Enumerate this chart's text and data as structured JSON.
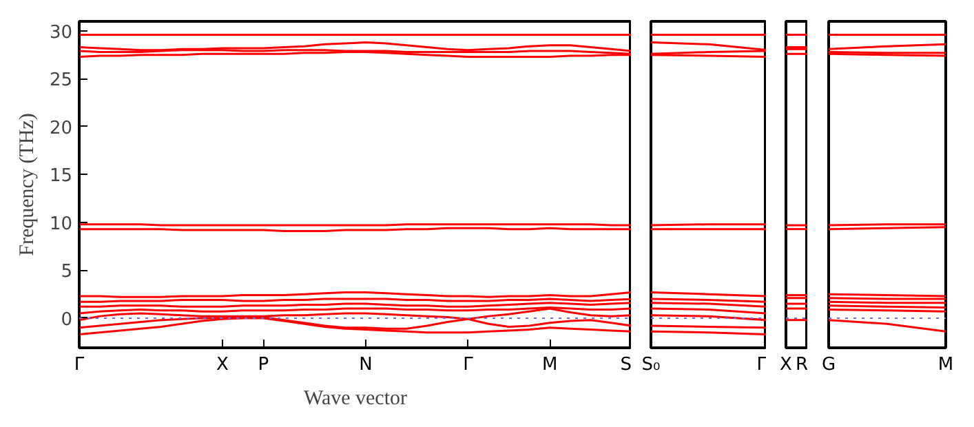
{
  "chart_data": [
    {
      "type": "line",
      "ylabel": "Frequency (THz)",
      "xlabel": "Wave vector",
      "ylim": [
        -3.1,
        31
      ],
      "categories": [
        "Γ",
        null,
        null,
        null,
        null,
        null,
        null,
        "X",
        null,
        "P",
        null,
        null,
        null,
        null,
        "N",
        null,
        null,
        null,
        null,
        "Γ",
        null,
        null,
        null,
        "M",
        null,
        null,
        null,
        "S"
      ],
      "yticks": [
        0,
        5,
        10,
        15,
        20,
        25,
        30
      ],
      "grid": false,
      "ref_lines": [
        {
          "axis": "y",
          "value": 0,
          "color": "#6a6ae8",
          "line_style": "dotted"
        }
      ],
      "series": [
        {
          "color": "#ff0000",
          "values": [
            -1.7,
            -1.5,
            -1.3,
            -1.1,
            -0.9,
            -0.6,
            -0.3,
            -0.1,
            0,
            0,
            -0.3,
            -0.6,
            -0.9,
            -1.1,
            -1.2,
            -1.3,
            -1.4,
            -1.5,
            -1.5,
            -1.5,
            -1.4,
            -1.3,
            -1.2,
            -1.0,
            -1.1,
            -1.2,
            -1.3,
            -1.4
          ]
        },
        {
          "color": "#ff0000",
          "values": [
            -1.0,
            -0.8,
            -0.6,
            -0.4,
            -0.2,
            -0.1,
            0,
            0,
            0.1,
            0.1,
            -0.2,
            -0.5,
            -0.8,
            -1.0,
            -1.0,
            -1.1,
            -1.1,
            -0.8,
            -0.4,
            -0.1,
            -0.6,
            -0.9,
            -0.8,
            -0.5,
            -0.3,
            -0.2,
            -0.5,
            -0.8
          ]
        },
        {
          "color": "#ff0000",
          "values": [
            -0.2,
            0.2,
            0.4,
            0.5,
            0.4,
            0.3,
            0.2,
            0.2,
            0.2,
            0.2,
            0.3,
            0.3,
            0.4,
            0.5,
            0.5,
            0.4,
            0.3,
            0.2,
            0.1,
            -0.1,
            0.2,
            0.4,
            0.7,
            1.0,
            0.6,
            0.3,
            0.2,
            0.3
          ]
        },
        {
          "color": "#ff0000",
          "values": [
            0.5,
            0.7,
            0.8,
            0.9,
            0.8,
            0.8,
            0.7,
            0.7,
            0.8,
            0.8,
            0.8,
            0.9,
            0.9,
            1.0,
            1.0,
            1.0,
            0.9,
            0.9,
            0.8,
            0.8,
            0.9,
            0.9,
            1.0,
            1.1,
            1.0,
            0.9,
            0.9,
            1.0
          ]
        },
        {
          "color": "#ff0000",
          "values": [
            1.2,
            1.2,
            1.3,
            1.3,
            1.3,
            1.2,
            1.2,
            1.2,
            1.3,
            1.3,
            1.3,
            1.4,
            1.4,
            1.5,
            1.5,
            1.4,
            1.3,
            1.3,
            1.2,
            1.2,
            1.3,
            1.4,
            1.5,
            1.6,
            1.5,
            1.4,
            1.5,
            1.6
          ]
        },
        {
          "color": "#ff0000",
          "values": [
            1.7,
            1.7,
            1.8,
            1.8,
            1.8,
            1.9,
            1.9,
            1.9,
            1.8,
            1.8,
            1.9,
            1.9,
            2.0,
            2.0,
            2.0,
            2.0,
            1.9,
            1.9,
            1.8,
            1.8,
            1.8,
            1.9,
            1.9,
            2.0,
            1.9,
            1.8,
            1.9,
            2.0
          ]
        },
        {
          "color": "#ff0000",
          "values": [
            2.3,
            2.3,
            2.2,
            2.2,
            2.2,
            2.3,
            2.3,
            2.3,
            2.4,
            2.4,
            2.4,
            2.5,
            2.6,
            2.7,
            2.7,
            2.6,
            2.5,
            2.4,
            2.3,
            2.3,
            2.2,
            2.3,
            2.3,
            2.4,
            2.3,
            2.3,
            2.5,
            2.7
          ]
        },
        {
          "color": "#ff0000",
          "values": [
            9.3,
            9.3,
            9.3,
            9.3,
            9.3,
            9.2,
            9.2,
            9.2,
            9.2,
            9.2,
            9.1,
            9.1,
            9.1,
            9.2,
            9.2,
            9.2,
            9.3,
            9.3,
            9.4,
            9.4,
            9.4,
            9.3,
            9.3,
            9.4,
            9.3,
            9.3,
            9.3,
            9.3
          ]
        },
        {
          "color": "#ff0000",
          "values": [
            9.8,
            9.8,
            9.8,
            9.8,
            9.7,
            9.7,
            9.7,
            9.7,
            9.7,
            9.7,
            9.7,
            9.7,
            9.7,
            9.7,
            9.7,
            9.7,
            9.8,
            9.8,
            9.8,
            9.8,
            9.8,
            9.8,
            9.8,
            9.8,
            9.8,
            9.8,
            9.7,
            9.7
          ]
        },
        {
          "color": "#ff0000",
          "values": [
            27.3,
            27.4,
            27.4,
            27.5,
            27.5,
            27.5,
            27.6,
            27.6,
            27.6,
            27.6,
            27.6,
            27.7,
            27.7,
            27.8,
            27.8,
            27.7,
            27.6,
            27.5,
            27.4,
            27.3,
            27.3,
            27.3,
            27.3,
            27.3,
            27.4,
            27.4,
            27.5,
            27.5
          ]
        },
        {
          "color": "#ff0000",
          "values": [
            27.9,
            27.8,
            27.8,
            27.8,
            27.9,
            28.0,
            28.0,
            28.0,
            27.9,
            27.9,
            28.0,
            28.0,
            28.0,
            27.9,
            27.9,
            27.9,
            27.8,
            27.8,
            27.8,
            27.8,
            27.8,
            27.8,
            27.9,
            27.9,
            27.9,
            27.8,
            27.7,
            27.6
          ]
        },
        {
          "color": "#ff0000",
          "values": [
            28.3,
            28.2,
            28.1,
            28.0,
            28.0,
            28.1,
            28.1,
            28.2,
            28.2,
            28.2,
            28.3,
            28.4,
            28.6,
            28.7,
            28.8,
            28.7,
            28.5,
            28.3,
            28.1,
            28.0,
            28.1,
            28.2,
            28.4,
            28.5,
            28.5,
            28.3,
            28.1,
            27.9
          ]
        },
        {
          "color": "#ff0000",
          "values": [
            29.6,
            29.6,
            29.6,
            29.6,
            29.6,
            29.6,
            29.6,
            29.6,
            29.6,
            29.6,
            29.6,
            29.6,
            29.6,
            29.6,
            29.6,
            29.6,
            29.6,
            29.6,
            29.6,
            29.6,
            29.6,
            29.6,
            29.6,
            29.6,
            29.6,
            29.6,
            29.6,
            29.6
          ]
        }
      ]
    },
    {
      "type": "line",
      "ylim": [
        -3.1,
        31
      ],
      "tick_labels": "x",
      "grid": false,
      "categories": [
        "S₀",
        null,
        "Γ"
      ],
      "ref_lines": [
        {
          "axis": "y",
          "value": 0,
          "color": "#6a6ae8",
          "line_style": "dotted"
        }
      ],
      "series": [
        {
          "color": "#ff0000",
          "values": [
            -1.4,
            -1.5,
            -1.7
          ]
        },
        {
          "color": "#ff0000",
          "values": [
            -0.8,
            -0.9,
            -1.0
          ]
        },
        {
          "color": "#ff0000",
          "values": [
            0.3,
            0.2,
            -0.2
          ]
        },
        {
          "color": "#ff0000",
          "values": [
            1.0,
            0.9,
            0.5
          ]
        },
        {
          "color": "#ff0000",
          "values": [
            1.6,
            1.5,
            1.2
          ]
        },
        {
          "color": "#ff0000",
          "values": [
            2.0,
            1.9,
            1.7
          ]
        },
        {
          "color": "#ff0000",
          "values": [
            2.7,
            2.5,
            2.3
          ]
        },
        {
          "color": "#ff0000",
          "values": [
            9.3,
            9.3,
            9.3
          ]
        },
        {
          "color": "#ff0000",
          "values": [
            9.7,
            9.8,
            9.8
          ]
        },
        {
          "color": "#ff0000",
          "values": [
            27.5,
            27.4,
            27.3
          ]
        },
        {
          "color": "#ff0000",
          "values": [
            27.6,
            27.8,
            27.9
          ]
        },
        {
          "color": "#ff0000",
          "values": [
            28.8,
            28.6,
            28.0
          ]
        },
        {
          "color": "#ff0000",
          "values": [
            29.6,
            29.6,
            29.6
          ]
        }
      ]
    },
    {
      "type": "line",
      "ylim": [
        -3.1,
        31
      ],
      "tick_labels": "x",
      "grid": false,
      "categories": [
        "X",
        "R"
      ],
      "ref_lines": [
        {
          "axis": "y",
          "value": 0,
          "color": "#6a6ae8",
          "line_style": "dotted"
        }
      ],
      "series": [
        {
          "color": "#ff0000",
          "values": [
            -0.2,
            -0.2
          ]
        },
        {
          "color": "#ff0000",
          "values": [
            1.0,
            1.0
          ]
        },
        {
          "color": "#ff0000",
          "values": [
            1.5,
            1.5
          ]
        },
        {
          "color": "#ff0000",
          "values": [
            2.1,
            2.1
          ]
        },
        {
          "color": "#ff0000",
          "values": [
            2.4,
            2.4
          ]
        },
        {
          "color": "#ff0000",
          "values": [
            9.3,
            9.3
          ]
        },
        {
          "color": "#ff0000",
          "values": [
            9.7,
            9.7
          ]
        },
        {
          "color": "#ff0000",
          "values": [
            27.6,
            27.6
          ]
        },
        {
          "color": "#ff0000",
          "values": [
            28.1,
            28.1
          ]
        },
        {
          "color": "#ff0000",
          "values": [
            28.3,
            28.3
          ]
        },
        {
          "color": "#ff0000",
          "values": [
            29.6,
            29.6
          ]
        }
      ]
    },
    {
      "type": "line",
      "ylim": [
        -3.1,
        31
      ],
      "tick_labels": "x",
      "grid": false,
      "categories": [
        "G",
        null,
        "M"
      ],
      "ref_lines": [
        {
          "axis": "y",
          "value": 0,
          "color": "#6a6ae8",
          "line_style": "dotted"
        }
      ],
      "series": [
        {
          "color": "#ff0000",
          "values": [
            -0.2,
            -0.6,
            -1.4
          ]
        },
        {
          "color": "#ff0000",
          "values": [
            0.9,
            0.8,
            0.7
          ]
        },
        {
          "color": "#ff0000",
          "values": [
            1.3,
            1.2,
            1.1
          ]
        },
        {
          "color": "#ff0000",
          "values": [
            1.7,
            1.6,
            1.6
          ]
        },
        {
          "color": "#ff0000",
          "values": [
            2.1,
            2.0,
            2.0
          ]
        },
        {
          "color": "#ff0000",
          "values": [
            2.5,
            2.4,
            2.3
          ]
        },
        {
          "color": "#ff0000",
          "values": [
            9.3,
            9.4,
            9.5
          ]
        },
        {
          "color": "#ff0000",
          "values": [
            9.7,
            9.8,
            9.8
          ]
        },
        {
          "color": "#ff0000",
          "values": [
            27.6,
            27.5,
            27.4
          ]
        },
        {
          "color": "#ff0000",
          "values": [
            27.8,
            27.7,
            27.7
          ]
        },
        {
          "color": "#ff0000",
          "values": [
            28.1,
            28.4,
            28.6
          ]
        },
        {
          "color": "#ff0000",
          "values": [
            29.6,
            29.6,
            29.6
          ]
        }
      ]
    }
  ]
}
